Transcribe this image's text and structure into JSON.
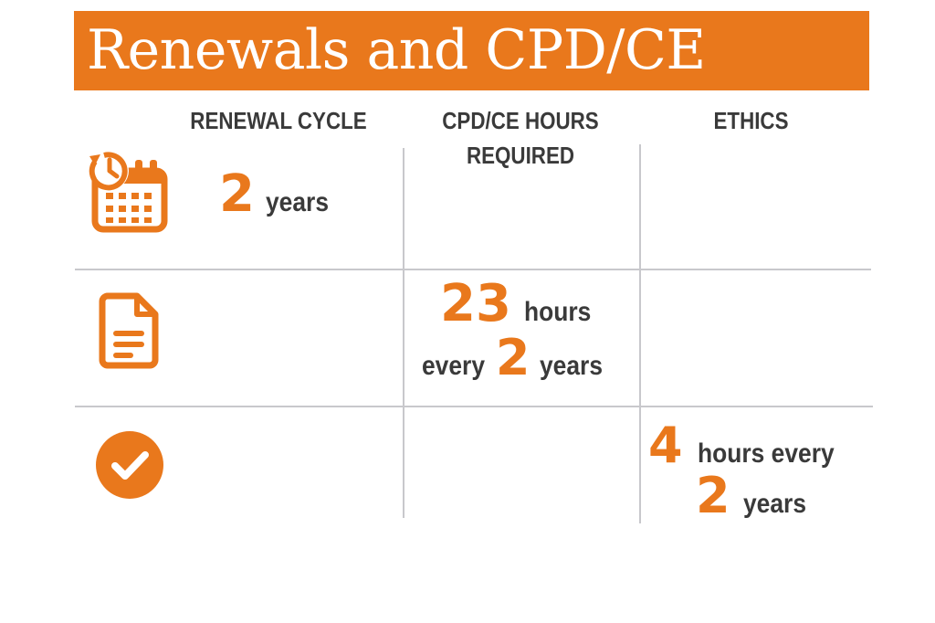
{
  "title": "Renewals and CPD/CE",
  "columns": {
    "renewal_cycle": "RENEWAL CYCLE",
    "cpd_line1": "CPD/CE HOURS",
    "cpd_line2": "REQUIRED",
    "ethics": "ETHICS"
  },
  "renewal": {
    "value": "2",
    "unit": "years"
  },
  "cpd": {
    "hours_value": "23",
    "hours_unit": "hours",
    "every_label": "every",
    "every_value": "2",
    "every_unit": "years"
  },
  "ethics": {
    "hours_value": "4",
    "hours_unit": "hours every",
    "every_value": "2",
    "every_unit": "years"
  },
  "icons": [
    "calendar-clock-icon",
    "document-icon",
    "checkmark-icon"
  ],
  "colors": {
    "accent": "#e9781c",
    "text": "#3a3a3a",
    "grid": "#c8c8cc"
  }
}
